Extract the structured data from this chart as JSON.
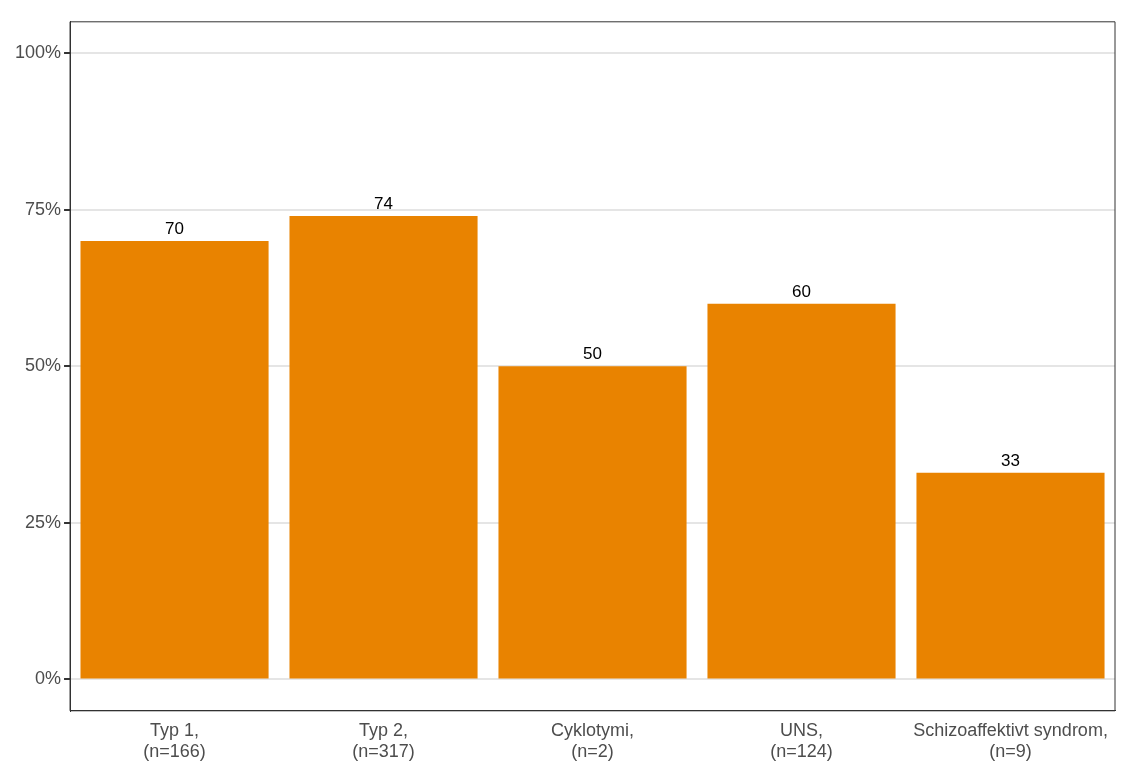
{
  "chart_data": {
    "type": "bar",
    "categories": [
      "Typ 1,\n(n=166)",
      "Typ 2,\n(n=317)",
      "Cyklotymi,\n(n=2)",
      "UNS,\n(n=124)",
      "Schizoaffektivt syndrom,\n(n=9)"
    ],
    "values": [
      70,
      74,
      50,
      60,
      33
    ],
    "color": "#e98300",
    "ylim": [
      -5,
      105
    ],
    "yticks": [
      {
        "value": 0,
        "label": "0%"
      },
      {
        "value": 25,
        "label": "25%"
      },
      {
        "value": 50,
        "label": "50%"
      },
      {
        "value": 75,
        "label": "75%"
      },
      {
        "value": 100,
        "label": "100%"
      }
    ],
    "grid": "y",
    "data_labels": true
  }
}
